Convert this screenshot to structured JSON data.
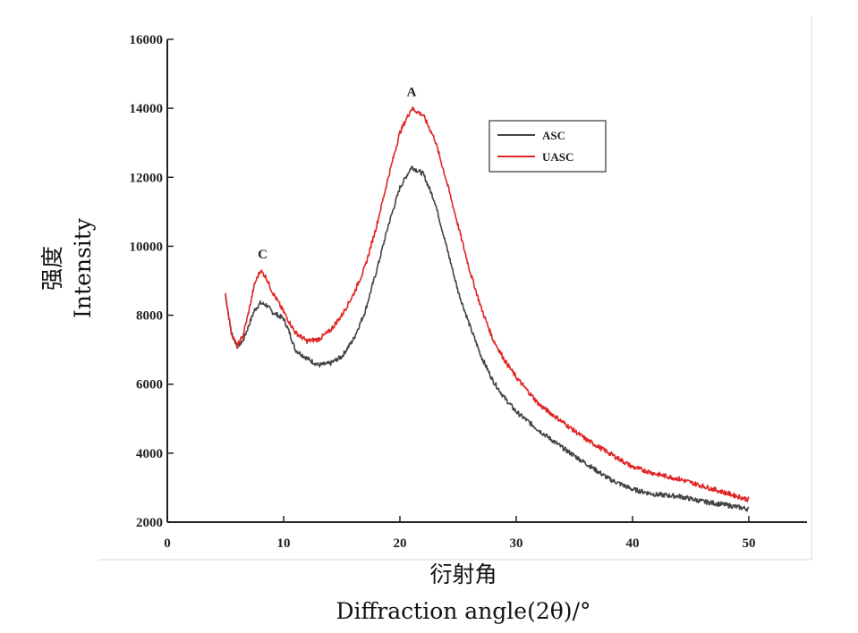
{
  "chart_data": {
    "type": "line",
    "xlabel_cn": "衍射角",
    "xlabel": "Diffraction  angle(2θ)/°",
    "ylabel_cn": "强度",
    "ylabel": "Intensity",
    "xlim": [
      0,
      55
    ],
    "ylim": [
      2000,
      16000
    ],
    "x_ticks": [
      0,
      10,
      20,
      30,
      40,
      50
    ],
    "y_ticks": [
      2000,
      4000,
      6000,
      8000,
      10000,
      12000,
      14000,
      16000
    ],
    "legend": {
      "position": "top-right",
      "entries": [
        "ASC",
        "UASC"
      ]
    },
    "annotations": [
      {
        "text": "A",
        "x": 21,
        "y": 14350
      },
      {
        "text": "C",
        "x": 8.2,
        "y": 9650
      }
    ],
    "series": [
      {
        "name": "ASC",
        "color": "#444444",
        "points": [
          [
            5,
            8600
          ],
          [
            5.5,
            7500
          ],
          [
            6,
            7100
          ],
          [
            6.5,
            7250
          ],
          [
            7,
            7700
          ],
          [
            7.5,
            8150
          ],
          [
            8,
            8350
          ],
          [
            8.5,
            8300
          ],
          [
            9,
            8100
          ],
          [
            10,
            7900
          ],
          [
            10.5,
            7500
          ],
          [
            11,
            7000
          ],
          [
            12,
            6750
          ],
          [
            13,
            6550
          ],
          [
            14,
            6600
          ],
          [
            15,
            6800
          ],
          [
            16,
            7300
          ],
          [
            17,
            8100
          ],
          [
            18,
            9300
          ],
          [
            19,
            10600
          ],
          [
            20,
            11700
          ],
          [
            21,
            12300
          ],
          [
            22,
            12100
          ],
          [
            23,
            11300
          ],
          [
            24,
            10000
          ],
          [
            25,
            8700
          ],
          [
            26,
            7700
          ],
          [
            27,
            6800
          ],
          [
            28,
            6100
          ],
          [
            29,
            5600
          ],
          [
            30,
            5200
          ],
          [
            32,
            4650
          ],
          [
            34,
            4150
          ],
          [
            36,
            3700
          ],
          [
            38,
            3250
          ],
          [
            40,
            2950
          ],
          [
            42,
            2800
          ],
          [
            44,
            2750
          ],
          [
            46,
            2600
          ],
          [
            48,
            2500
          ],
          [
            50,
            2380
          ]
        ]
      },
      {
        "name": "UASC",
        "color": "#e02525",
        "points": [
          [
            5,
            8600
          ],
          [
            5.5,
            7500
          ],
          [
            6,
            7100
          ],
          [
            6.5,
            7400
          ],
          [
            7,
            8100
          ],
          [
            7.5,
            8900
          ],
          [
            8,
            9300
          ],
          [
            8.5,
            9100
          ],
          [
            9,
            8700
          ],
          [
            10,
            8100
          ],
          [
            11,
            7500
          ],
          [
            12,
            7250
          ],
          [
            13,
            7300
          ],
          [
            14,
            7550
          ],
          [
            15,
            8000
          ],
          [
            16,
            8600
          ],
          [
            17,
            9400
          ],
          [
            18,
            10600
          ],
          [
            19,
            12000
          ],
          [
            20,
            13300
          ],
          [
            21,
            14000
          ],
          [
            22,
            13800
          ],
          [
            23,
            13100
          ],
          [
            24,
            11900
          ],
          [
            25,
            10600
          ],
          [
            26,
            9300
          ],
          [
            27,
            8200
          ],
          [
            28,
            7300
          ],
          [
            29,
            6700
          ],
          [
            30,
            6200
          ],
          [
            32,
            5400
          ],
          [
            34,
            4900
          ],
          [
            36,
            4400
          ],
          [
            38,
            4000
          ],
          [
            40,
            3600
          ],
          [
            42,
            3400
          ],
          [
            44,
            3250
          ],
          [
            46,
            3050
          ],
          [
            48,
            2850
          ],
          [
            50,
            2650
          ]
        ]
      }
    ]
  }
}
